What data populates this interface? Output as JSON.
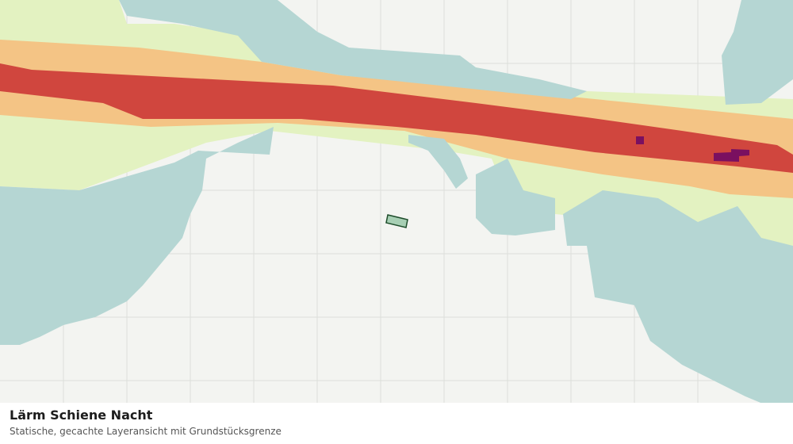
{
  "title": "Lärm Schiene Nacht",
  "subtitle": "Statische, gecachte Layeransicht mit Grundstücksgrenze"
}
